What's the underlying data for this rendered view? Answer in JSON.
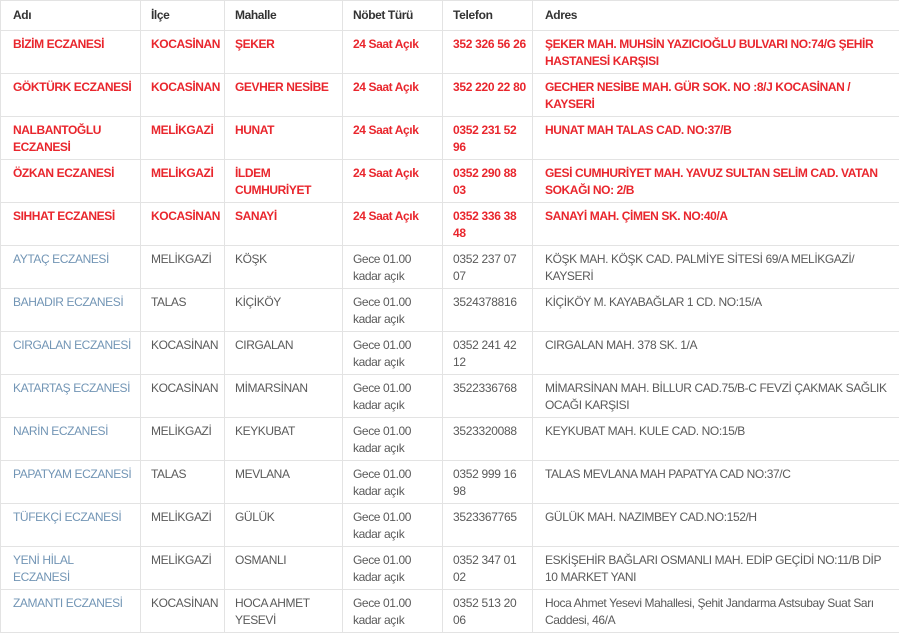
{
  "colors": {
    "red": "#e9262d",
    "link_blue": "#7295b5",
    "text_gray": "#5a5a5a",
    "header_text": "#333333",
    "border": "#e3e3e3"
  },
  "table": {
    "columns": [
      {
        "key": "name",
        "label": "Adı"
      },
      {
        "key": "district",
        "label": "İlçe"
      },
      {
        "key": "neighborhood",
        "label": "Mahalle"
      },
      {
        "key": "duty",
        "label": "Nöbet Türü"
      },
      {
        "key": "phone",
        "label": "Telefon"
      },
      {
        "key": "address",
        "label": "Adres"
      }
    ],
    "rows": [
      {
        "name": "BİZİM ECZANESİ",
        "district": "KOCASİNAN",
        "neighborhood": "ŞEKER",
        "duty": "24 Saat Açık",
        "phone": "352 326 56 26",
        "address": "ŞEKER MAH. MUHSİN YAZICIOĞLU BULVARI NO:74/G ŞEHİR HASTANESİ KARŞISI",
        "highlight": "24h"
      },
      {
        "name": "GÖKTÜRK ECZANESİ",
        "district": "KOCASİNAN",
        "neighborhood": "GEVHER NESİBE",
        "duty": "24 Saat Açık",
        "phone": "352 220 22 80",
        "address": "GECHER NESİBE MAH. GÜR SOK. NO :8/J KOCASİNAN / KAYSERİ",
        "highlight": "24h"
      },
      {
        "name": "NALBANTOĞLU ECZANESİ",
        "district": "MELİKGAZİ",
        "neighborhood": "HUNAT",
        "duty": "24 Saat Açık",
        "phone": "0352 231 52 96",
        "address": "HUNAT MAH TALAS CAD. NO:37/B",
        "highlight": "24h"
      },
      {
        "name": "ÖZKAN ECZANESİ",
        "district": "MELİKGAZİ",
        "neighborhood": "İLDEM CUMHURİYET",
        "duty": "24 Saat Açık",
        "phone": "0352 290 88 03",
        "address": "GESİ CUMHURİYET MAH. YAVUZ SULTAN SELİM CAD. VATAN SOKAĞI NO: 2/B",
        "highlight": "24h"
      },
      {
        "name": "SIHHAT ECZANESİ",
        "district": "KOCASİNAN",
        "neighborhood": "SANAYİ",
        "duty": "24 Saat Açık",
        "phone": "0352 336 38 48",
        "address": "SANAYİ MAH. ÇİMEN SK. NO:40/A",
        "highlight": "24h"
      },
      {
        "name": "AYTAÇ ECZANESİ",
        "district": "MELİKGAZİ",
        "neighborhood": "KÖŞK",
        "duty": "Gece 01.00 kadar açık",
        "phone": "0352 237 07 07",
        "address": "KÖŞK MAH. KÖŞK CAD. PALMİYE SİTESİ 69/A MELİKGAZİ/ KAYSERİ",
        "highlight": "night"
      },
      {
        "name": "BAHADIR ECZANESİ",
        "district": "TALAS",
        "neighborhood": "KİÇİKÖY",
        "duty": "Gece 01.00 kadar açık",
        "phone": "3524378816",
        "address": "KİÇİKÖY M. KAYABAĞLAR 1 CD. NO:15/A",
        "highlight": "night"
      },
      {
        "name": "CIRGALAN ECZANESİ",
        "district": "KOCASİNAN",
        "neighborhood": "CIRGALAN",
        "duty": "Gece 01.00 kadar açık",
        "phone": "0352 241 42 12",
        "address": "CIRGALAN MAH. 378 SK. 1/A",
        "highlight": "night"
      },
      {
        "name": "KATARTAŞ ECZANESİ",
        "district": "KOCASİNAN",
        "neighborhood": "MİMARSİNAN",
        "duty": "Gece 01.00 kadar açık",
        "phone": "3522336768",
        "address": "MİMARSİNAN MAH. BİLLUR CAD.75/B-C FEVZİ ÇAKMAK SAĞLIK OCAĞI KARŞISI",
        "highlight": "night"
      },
      {
        "name": "NARİN ECZANESİ",
        "district": "MELİKGAZİ",
        "neighborhood": "KEYKUBAT",
        "duty": "Gece 01.00 kadar açık",
        "phone": "3523320088",
        "address": "KEYKUBAT MAH. KULE CAD. NO:15/B",
        "highlight": "night"
      },
      {
        "name": "PAPATYAM ECZANESİ",
        "district": "TALAS",
        "neighborhood": "MEVLANA",
        "duty": "Gece 01.00 kadar açık",
        "phone": "0352 999 16 98",
        "address": "TALAS MEVLANA MAH PAPATYA CAD NO:37/C",
        "highlight": "night"
      },
      {
        "name": "TÜFEKÇİ ECZANESİ",
        "district": "MELİKGAZİ",
        "neighborhood": "GÜLÜK",
        "duty": "Gece 01.00 kadar açık",
        "phone": "3523367765",
        "address": "GÜLÜK MAH. NAZIMBEY CAD.NO:152/H",
        "highlight": "night"
      },
      {
        "name": "YENİ HİLAL ECZANESİ",
        "district": "MELİKGAZİ",
        "neighborhood": "OSMANLI",
        "duty": "Gece 01.00 kadar açık",
        "phone": "0352 347 01 02",
        "address": "ESKİŞEHİR BAĞLARI OSMANLI MAH. EDİP GEÇİDİ NO:11/B DİP 10 MARKET YANI",
        "highlight": "night"
      },
      {
        "name": "ZAMANTI ECZANESİ",
        "district": "KOCASİNAN",
        "neighborhood": "HOCA AHMET YESEVİ",
        "duty": "Gece 01.00 kadar açık",
        "phone": "0352 513 20 06",
        "address": "Hoca Ahmet Yesevi Mahallesi, Şehit Jandarma Astsubay Suat Sarı Caddesi, 46/A",
        "highlight": "night"
      }
    ]
  }
}
